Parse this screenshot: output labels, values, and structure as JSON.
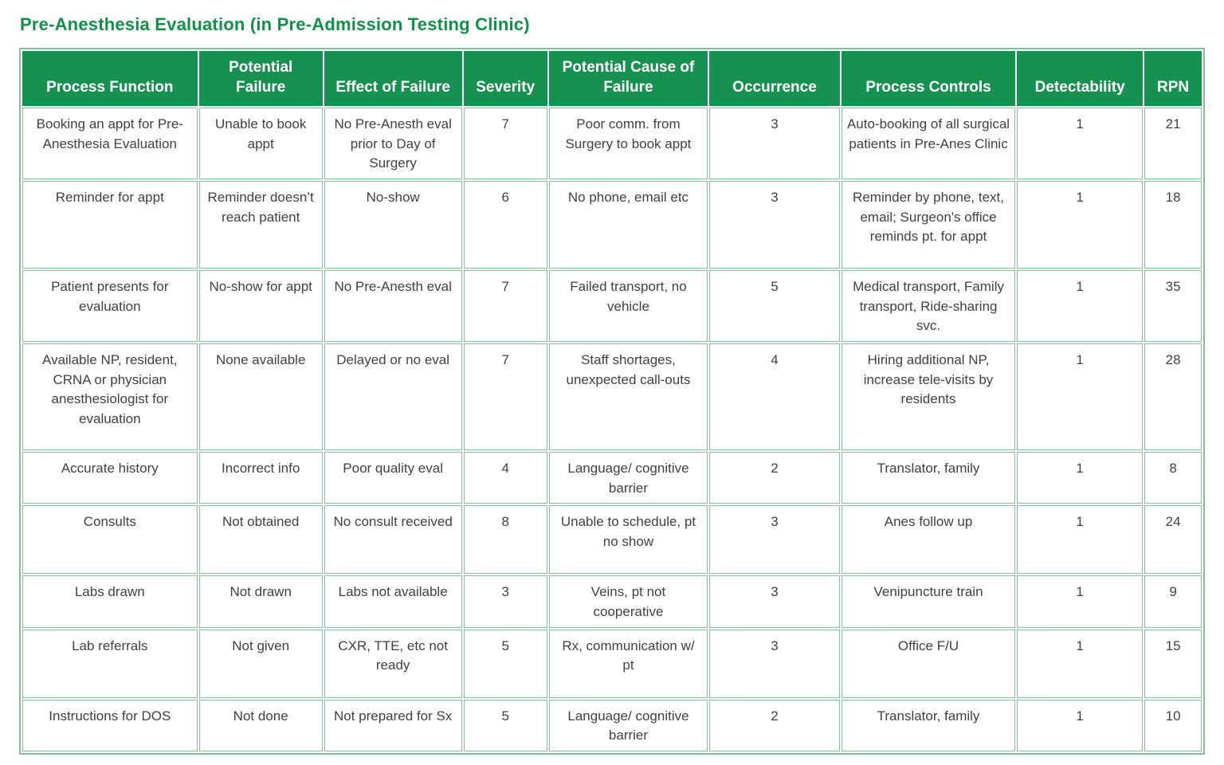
{
  "page": {
    "title": "Pre-Anesthesia Evaluation (in Pre-Admission Testing Clinic)"
  },
  "colors": {
    "title_text": "#0f9147",
    "header_bg": "#17914f",
    "border_green": "#86be97",
    "body_text": "#414042",
    "header_text": "#ffffff"
  },
  "table": {
    "columns": [
      "Process Function",
      "Potential Failure",
      "Effect of Failure",
      "Severity",
      "Potential Cause of Failure",
      "Occurrence",
      "Process Controls",
      "Detectability",
      "RPN"
    ],
    "rows": [
      [
        "Booking an appt for Pre-Anesthesia Evaluation",
        "Unable to book appt",
        "No Pre-Anesth eval prior to Day of Surgery",
        "7",
        "Poor comm. from Surgery to book appt",
        "3",
        "Auto-booking of all surgical patients in Pre-Anes Clinic",
        "1",
        "21"
      ],
      [
        "Reminder for appt",
        "Reminder doesn’t reach patient",
        "No-show",
        "6",
        "No phone, email etc",
        "3",
        "Reminder by phone, text, email; Surgeon's office reminds pt. for appt",
        "1",
        "18"
      ],
      [
        "Patient presents for evaluation",
        "No-show for appt",
        "No Pre-Anesth eval",
        "7",
        "Failed transport, no vehicle",
        "5",
        "Medical transport, Family transport, Ride-sharing svc.",
        "1",
        "35"
      ],
      [
        "Available NP, resident, CRNA or physician anesthesiologist for evaluation",
        "None available",
        "Delayed or no eval",
        "7",
        "Staff shortages, unexpected call-outs",
        "4",
        "Hiring additional NP, increase tele-visits by residents",
        "1",
        "28"
      ],
      [
        "Accurate history",
        "Incorrect info",
        "Poor quality eval",
        "4",
        "Language/ cognitive barrier",
        "2",
        "Translator, family",
        "1",
        "8"
      ],
      [
        "Consults",
        "Not obtained",
        "No consult received",
        "8",
        "Unable to schedule, pt no show",
        "3",
        "Anes follow up",
        "1",
        "24"
      ],
      [
        "Labs drawn",
        "Not drawn",
        "Labs not available",
        "3",
        "Veins, pt not cooperative",
        "3",
        "Venipuncture train",
        "1",
        "9"
      ],
      [
        "Lab referrals",
        "Not given",
        "CXR, TTE, etc not ready",
        "5",
        "Rx, communication w/ pt",
        "3",
        "Office F/U",
        "1",
        "15"
      ],
      [
        "Instructions for DOS",
        "Not done",
        "Not prepared for Sx",
        "5",
        "Language/ cognitive barrier",
        "2",
        "Translator, family",
        "1",
        "10"
      ]
    ]
  }
}
